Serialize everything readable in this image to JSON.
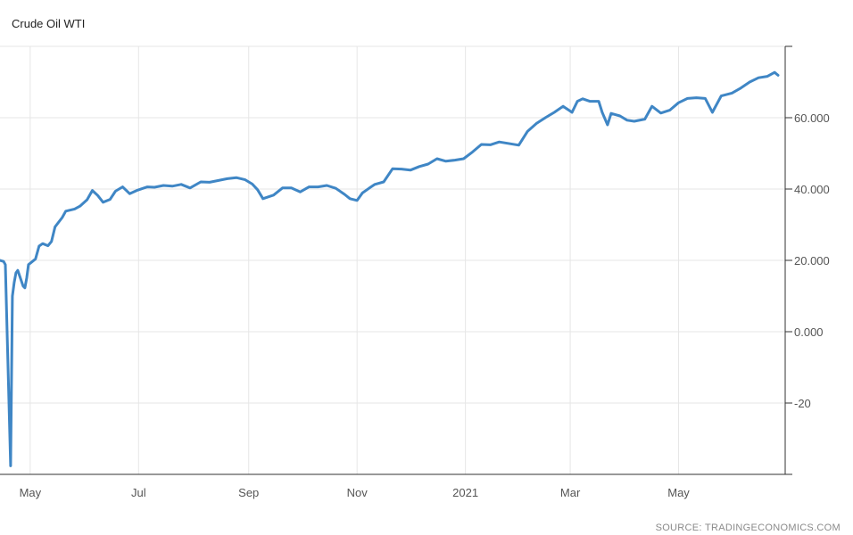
{
  "chart_data": {
    "type": "line",
    "title": "Crude Oil WTI",
    "source": "SOURCE: TRADINGECONOMICS.COM",
    "xlabel": "",
    "ylabel": "",
    "y_axis_position": "right",
    "ylim": [
      -40,
      80
    ],
    "y_ticks": [
      60,
      40,
      20,
      0,
      -20
    ],
    "y_tick_labels": [
      "60.000",
      "40.000",
      "20.000",
      "0.000",
      "-20"
    ],
    "xlim": [
      "2020-04-14",
      "2021-06-30"
    ],
    "x_ticks": [
      "2020-05-01",
      "2020-07-01",
      "2020-09-01",
      "2020-11-01",
      "2021-01-01",
      "2021-03-01",
      "2021-05-01"
    ],
    "x_tick_labels": [
      "May",
      "Jul",
      "Sep",
      "Nov",
      "2021",
      "Mar",
      "May"
    ],
    "grid": true,
    "legend": "none",
    "color": "#3f86c5",
    "series": [
      {
        "x": [
          "2020-04-14",
          "2020-04-16",
          "2020-04-17",
          "2020-04-20",
          "2020-04-21",
          "2020-04-22",
          "2020-04-23",
          "2020-04-24",
          "2020-04-27",
          "2020-04-28",
          "2020-04-29",
          "2020-04-30",
          "2020-05-04",
          "2020-05-06",
          "2020-05-08",
          "2020-05-11",
          "2020-05-13",
          "2020-05-15",
          "2020-05-19",
          "2020-05-21",
          "2020-05-26",
          "2020-05-29",
          "2020-06-02",
          "2020-06-05",
          "2020-06-08",
          "2020-06-11",
          "2020-06-15",
          "2020-06-18",
          "2020-06-22",
          "2020-06-26",
          "2020-06-30",
          "2020-07-06",
          "2020-07-10",
          "2020-07-15",
          "2020-07-20",
          "2020-07-25",
          "2020-07-30",
          "2020-08-05",
          "2020-08-10",
          "2020-08-15",
          "2020-08-20",
          "2020-08-25",
          "2020-08-30",
          "2020-09-03",
          "2020-09-06",
          "2020-09-09",
          "2020-09-15",
          "2020-09-20",
          "2020-09-25",
          "2020-09-30",
          "2020-10-05",
          "2020-10-10",
          "2020-10-15",
          "2020-10-20",
          "2020-10-25",
          "2020-10-28",
          "2020-11-01",
          "2020-11-04",
          "2020-11-08",
          "2020-11-11",
          "2020-11-16",
          "2020-11-21",
          "2020-11-26",
          "2020-12-01",
          "2020-12-06",
          "2020-12-11",
          "2020-12-16",
          "2020-12-21",
          "2020-12-26",
          "2020-12-31",
          "2021-01-05",
          "2021-01-10",
          "2021-01-15",
          "2021-01-20",
          "2021-01-25",
          "2021-01-31",
          "2021-02-05",
          "2021-02-10",
          "2021-02-15",
          "2021-02-20",
          "2021-02-25",
          "2021-03-02",
          "2021-03-05",
          "2021-03-08",
          "2021-03-12",
          "2021-03-17",
          "2021-03-19",
          "2021-03-22",
          "2021-03-24",
          "2021-03-29",
          "2021-04-02",
          "2021-04-06",
          "2021-04-12",
          "2021-04-16",
          "2021-04-21",
          "2021-04-26",
          "2021-05-01",
          "2021-05-06",
          "2021-05-11",
          "2021-05-16",
          "2021-05-20",
          "2021-05-25",
          "2021-05-31",
          "2021-06-05",
          "2021-06-10",
          "2021-06-15",
          "2021-06-20",
          "2021-06-24",
          "2021-06-26"
        ],
        "y": [
          20.0,
          19.7,
          18.8,
          -37.6,
          10.0,
          13.8,
          16.5,
          17.2,
          12.8,
          12.3,
          15.0,
          18.8,
          20.4,
          24.0,
          24.7,
          24.1,
          25.3,
          29.4,
          32.0,
          33.8,
          34.4,
          35.2,
          37.0,
          39.6,
          38.2,
          36.3,
          37.1,
          39.4,
          40.6,
          38.7,
          39.6,
          40.6,
          40.5,
          41.0,
          40.8,
          41.3,
          40.3,
          42.0,
          41.9,
          42.4,
          42.9,
          43.2,
          42.6,
          41.4,
          39.8,
          37.3,
          38.3,
          40.3,
          40.3,
          39.2,
          40.6,
          40.6,
          41.0,
          40.2,
          38.5,
          37.3,
          36.8,
          38.9,
          40.3,
          41.3,
          42.0,
          45.7,
          45.6,
          45.3,
          46.3,
          47.0,
          48.5,
          47.8,
          48.1,
          48.5,
          50.4,
          52.5,
          52.4,
          53.2,
          52.8,
          52.3,
          56.2,
          58.4,
          60.0,
          61.5,
          63.2,
          61.5,
          64.6,
          65.3,
          64.6,
          64.6,
          61.5,
          58.0,
          61.2,
          60.5,
          59.3,
          59.0,
          59.6,
          63.2,
          61.3,
          62.1,
          64.2,
          65.4,
          65.6,
          65.4,
          61.5,
          66.1,
          66.9,
          68.3,
          70.0,
          71.2,
          71.6,
          72.7,
          71.9
        ]
      }
    ]
  }
}
